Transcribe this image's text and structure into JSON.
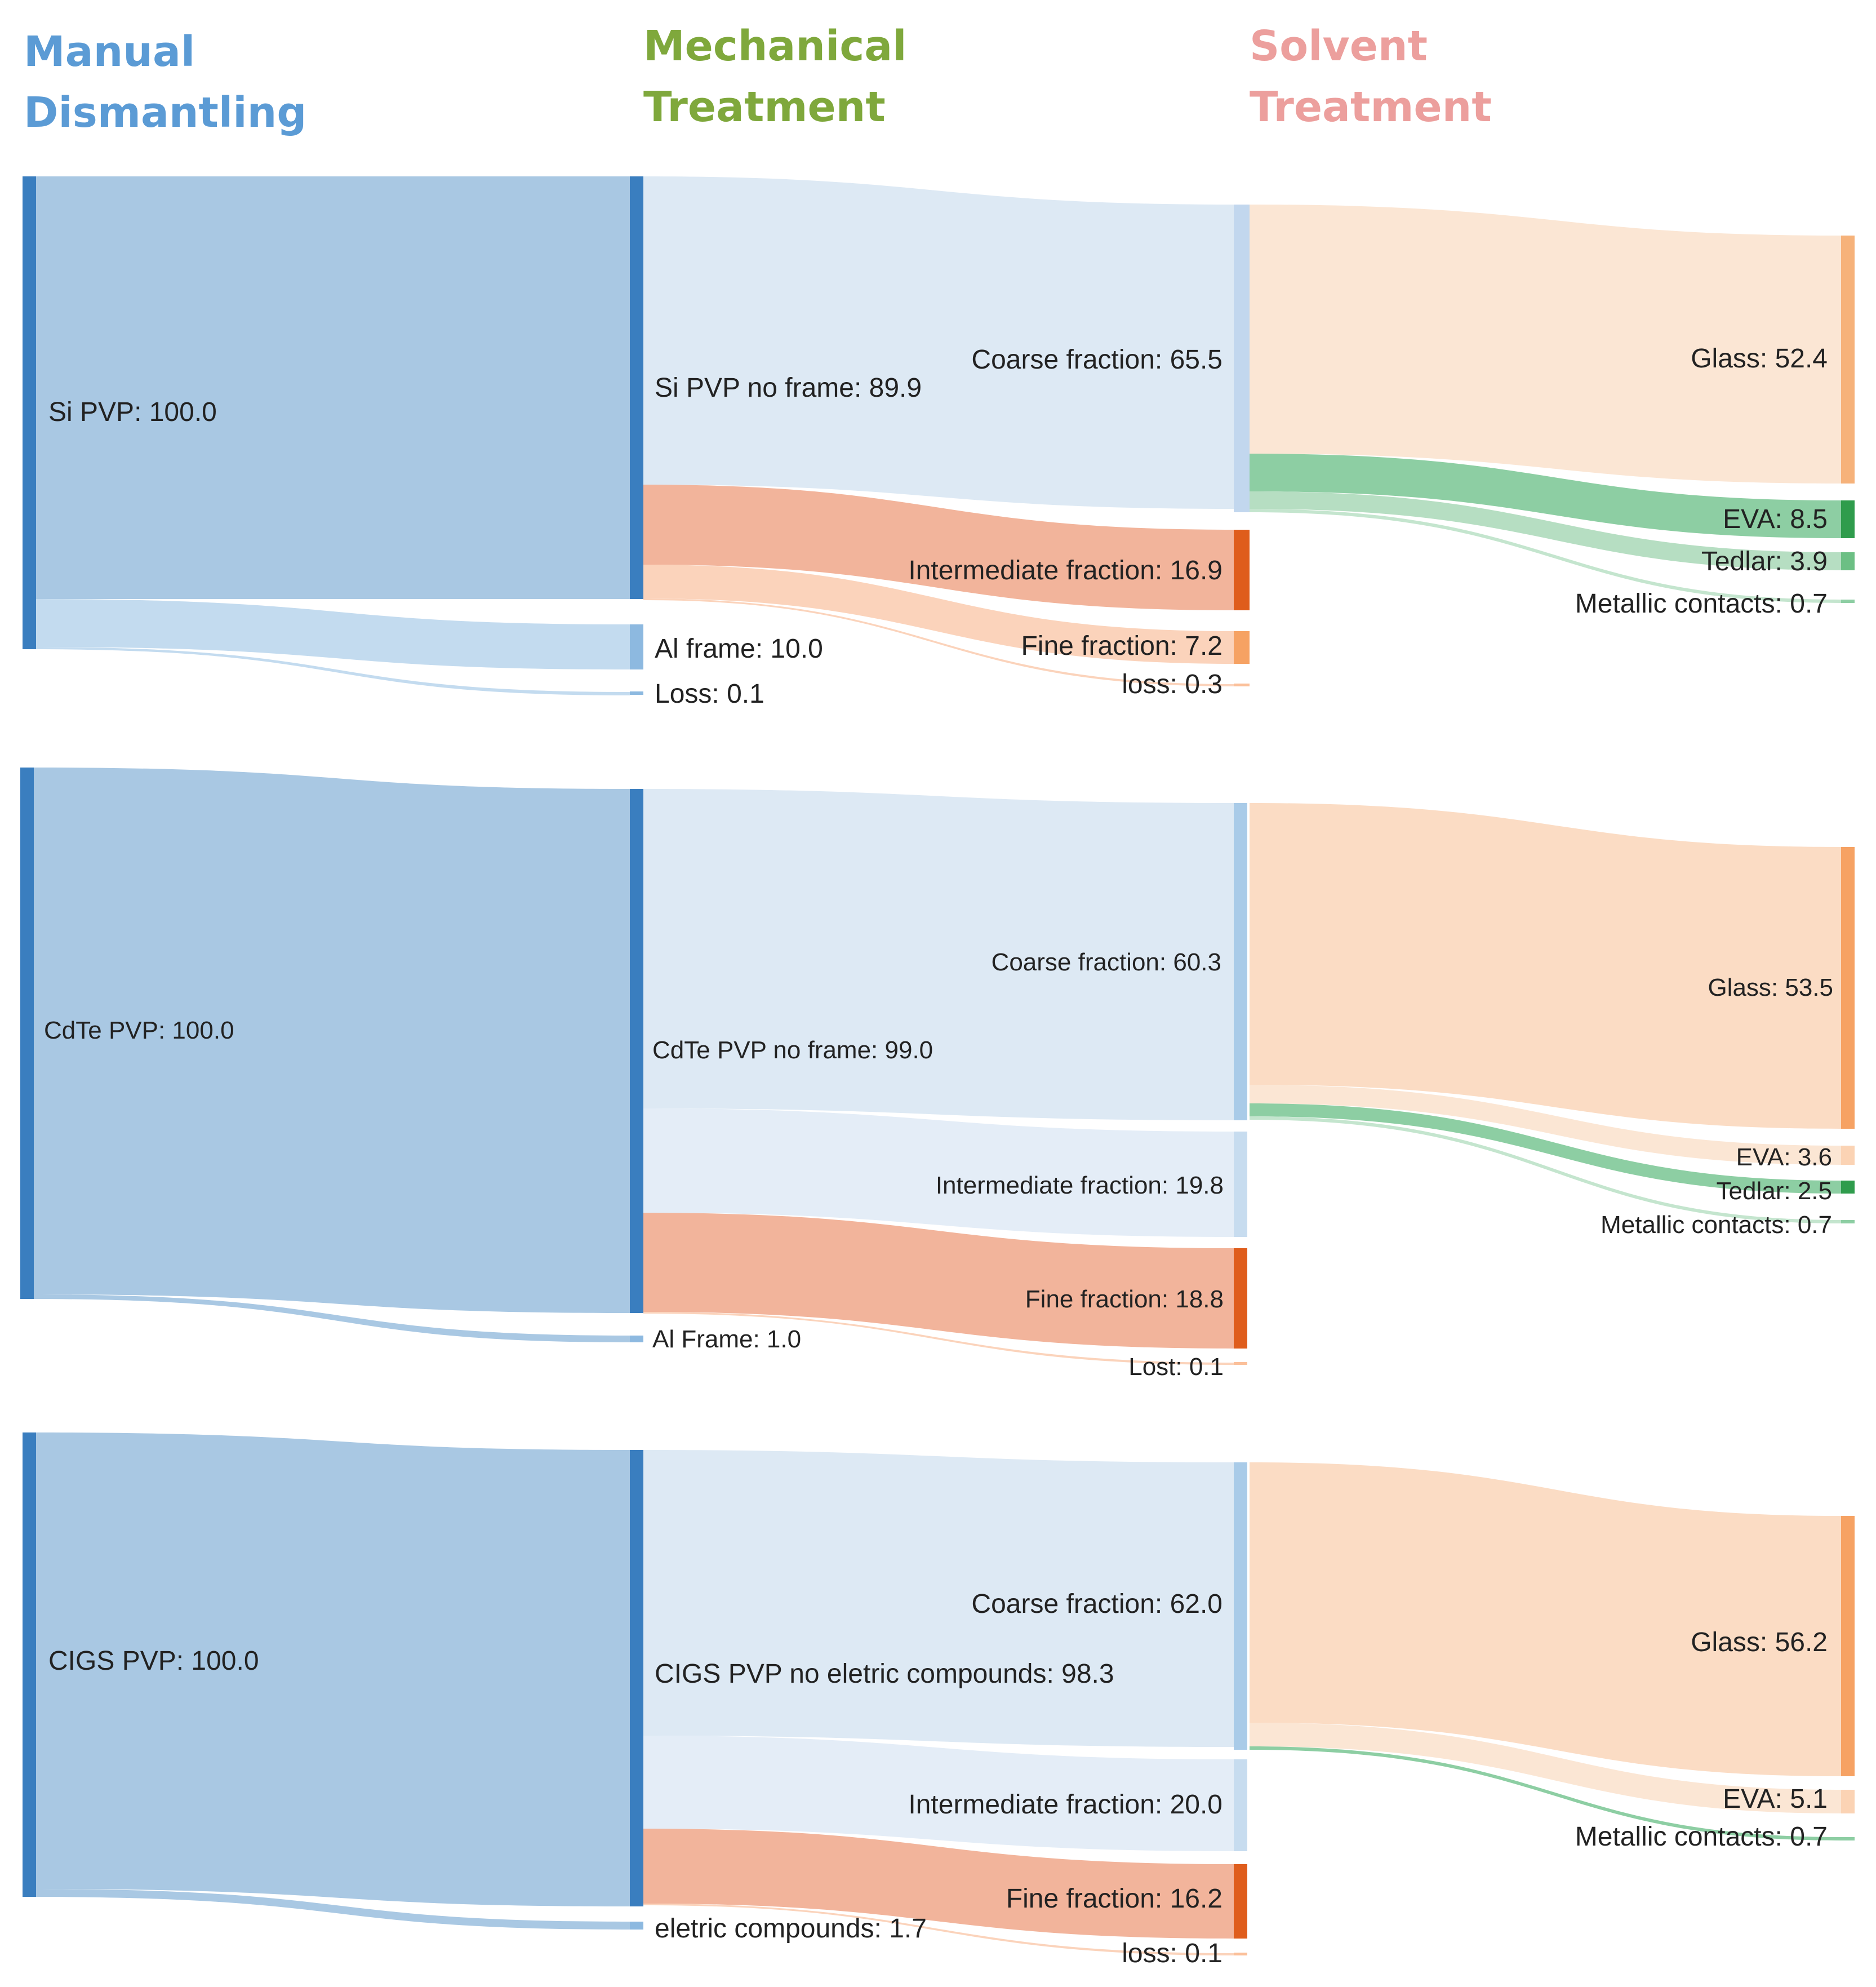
{
  "stages": [
    {
      "line1": "Manual",
      "line2": "Dismantling",
      "color": "#5b9bd5"
    },
    {
      "line1": "Mechanical",
      "line2": "Treatment",
      "color": "#7fa83c"
    },
    {
      "line1": "Solvent",
      "line2": "Treatment",
      "color": "#ec9f9d"
    }
  ],
  "colors": {
    "blue_node": "#3a7ebf",
    "blue_link": "#a9c8e3",
    "light_link": "#dde9f4",
    "light_node": "#b9d3ea",
    "orange_link": "#f2b49b",
    "orange_node": "#df5d1c",
    "peach_link": "#fbe0c9",
    "peach_node": "#f6a263",
    "green_link": "#8dcea3",
    "green_node": "#2f9c4c",
    "light_green_link": "#c4e5ce"
  },
  "diagrams": [
    {
      "name": "Si",
      "nodes": [
        {
          "id": "si_pvp",
          "label": "Si PVP: 100.0",
          "value": 100.0
        },
        {
          "id": "si_noframe",
          "label": "Si PVP no frame: 89.9",
          "value": 89.9
        },
        {
          "id": "al_frame",
          "label": "Al frame: 10.0",
          "value": 10.0
        },
        {
          "id": "loss1",
          "label": "Loss: 0.1",
          "value": 0.1
        },
        {
          "id": "coarse",
          "label": "Coarse fraction: 65.5",
          "value": 65.5
        },
        {
          "id": "intermediate",
          "label": "Intermediate fraction: 16.9",
          "value": 16.9
        },
        {
          "id": "fine",
          "label": "Fine fraction: 7.2",
          "value": 7.2
        },
        {
          "id": "loss2",
          "label": "loss: 0.3",
          "value": 0.3
        },
        {
          "id": "glass",
          "label": "Glass: 52.4",
          "value": 52.4
        },
        {
          "id": "eva",
          "label": "EVA: 8.5",
          "value": 8.5
        },
        {
          "id": "tedlar",
          "label": "Tedlar: 3.9",
          "value": 3.9
        },
        {
          "id": "metallic",
          "label": "Metallic contacts: 0.7",
          "value": 0.7
        }
      ]
    },
    {
      "name": "CdTe",
      "nodes": [
        {
          "id": "cdte_pvp",
          "label": "CdTe PVP: 100.0",
          "value": 100.0
        },
        {
          "id": "cdte_noframe",
          "label": "CdTe PVP no frame: 99.0",
          "value": 99.0
        },
        {
          "id": "al_frame",
          "label": "Al Frame: 1.0",
          "value": 1.0
        },
        {
          "id": "coarse",
          "label": "Coarse fraction: 60.3",
          "value": 60.3
        },
        {
          "id": "intermediate",
          "label": "Intermediate fraction: 19.8",
          "value": 19.8
        },
        {
          "id": "fine",
          "label": "Fine fraction: 18.8",
          "value": 18.8
        },
        {
          "id": "lost",
          "label": "Lost: 0.1",
          "value": 0.1
        },
        {
          "id": "glass",
          "label": "Glass: 53.5",
          "value": 53.5
        },
        {
          "id": "eva",
          "label": "EVA: 3.6",
          "value": 3.6
        },
        {
          "id": "tedlar",
          "label": "Tedlar: 2.5",
          "value": 2.5
        },
        {
          "id": "metallic",
          "label": "Metallic contacts: 0.7",
          "value": 0.7
        }
      ]
    },
    {
      "name": "CIGS",
      "nodes": [
        {
          "id": "cigs_pvp",
          "label": "CIGS PVP: 100.0",
          "value": 100.0
        },
        {
          "id": "cigs_noelec",
          "label": "CIGS PVP no eletric compounds: 98.3",
          "value": 98.3
        },
        {
          "id": "elec",
          "label": "eletric compounds: 1.7",
          "value": 1.7
        },
        {
          "id": "coarse",
          "label": "Coarse fraction: 62.0",
          "value": 62.0
        },
        {
          "id": "intermediate",
          "label": "Intermediate fraction: 20.0",
          "value": 20.0
        },
        {
          "id": "fine",
          "label": "Fine fraction: 16.2",
          "value": 16.2
        },
        {
          "id": "loss",
          "label": "loss: 0.1",
          "value": 0.1
        },
        {
          "id": "glass",
          "label": "Glass: 56.2",
          "value": 56.2
        },
        {
          "id": "eva",
          "label": "EVA: 5.1",
          "value": 5.1
        },
        {
          "id": "metallic",
          "label": "Metallic contacts: 0.7",
          "value": 0.7
        }
      ]
    }
  ]
}
